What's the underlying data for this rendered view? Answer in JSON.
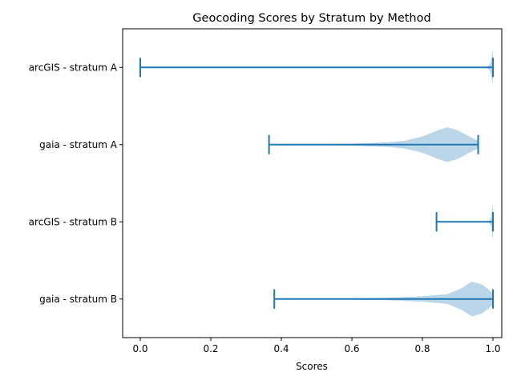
{
  "chart_data": {
    "type": "violin",
    "orientation": "horizontal",
    "title": "Geocoding Scores by Stratum by Method",
    "xlabel": "Scores",
    "ylabel": "",
    "xlim": [
      -0.05,
      1.025
    ],
    "xticks": [
      "0.0",
      "0.2",
      "0.4",
      "0.6",
      "0.8",
      "1.0"
    ],
    "grid": false,
    "legend": "none",
    "colors": {
      "body": "#1f77b4",
      "body_alpha": 0.3,
      "line": "#1f77b4"
    },
    "categories": [
      "arcGIS - stratum A",
      "gaia - stratum A",
      "arcGIS - stratum B",
      "gaia - stratum B"
    ],
    "series": [
      {
        "category": "arcGIS - stratum A",
        "min": 0.0,
        "max": 1.0,
        "density": [
          [
            0.0,
            0.0
          ],
          [
            0.9,
            0.0
          ],
          [
            0.96,
            0.006
          ],
          [
            0.98,
            0.03
          ],
          [
            0.99,
            0.12
          ],
          [
            0.995,
            0.4
          ],
          [
            0.998,
            0.75
          ],
          [
            1.0,
            0.9
          ]
        ]
      },
      {
        "category": "gaia - stratum A",
        "min": 0.365,
        "max": 0.958,
        "density": [
          [
            0.365,
            0.0
          ],
          [
            0.5,
            0.02
          ],
          [
            0.6,
            0.05
          ],
          [
            0.7,
            0.12
          ],
          [
            0.75,
            0.2
          ],
          [
            0.8,
            0.42
          ],
          [
            0.84,
            0.72
          ],
          [
            0.87,
            0.9
          ],
          [
            0.9,
            0.75
          ],
          [
            0.93,
            0.45
          ],
          [
            0.958,
            0.2
          ]
        ]
      },
      {
        "category": "arcGIS - stratum B",
        "min": 0.84,
        "max": 1.0,
        "density": [
          [
            0.84,
            0.0
          ],
          [
            0.97,
            0.0
          ],
          [
            0.99,
            0.05
          ],
          [
            0.995,
            0.25
          ],
          [
            0.998,
            0.7
          ],
          [
            1.0,
            0.9
          ]
        ]
      },
      {
        "category": "gaia - stratum B",
        "min": 0.38,
        "max": 1.0,
        "density": [
          [
            0.38,
            0.0
          ],
          [
            0.6,
            0.03
          ],
          [
            0.7,
            0.07
          ],
          [
            0.8,
            0.14
          ],
          [
            0.87,
            0.25
          ],
          [
            0.91,
            0.55
          ],
          [
            0.94,
            0.9
          ],
          [
            0.97,
            0.75
          ],
          [
            1.0,
            0.3
          ]
        ]
      }
    ]
  }
}
